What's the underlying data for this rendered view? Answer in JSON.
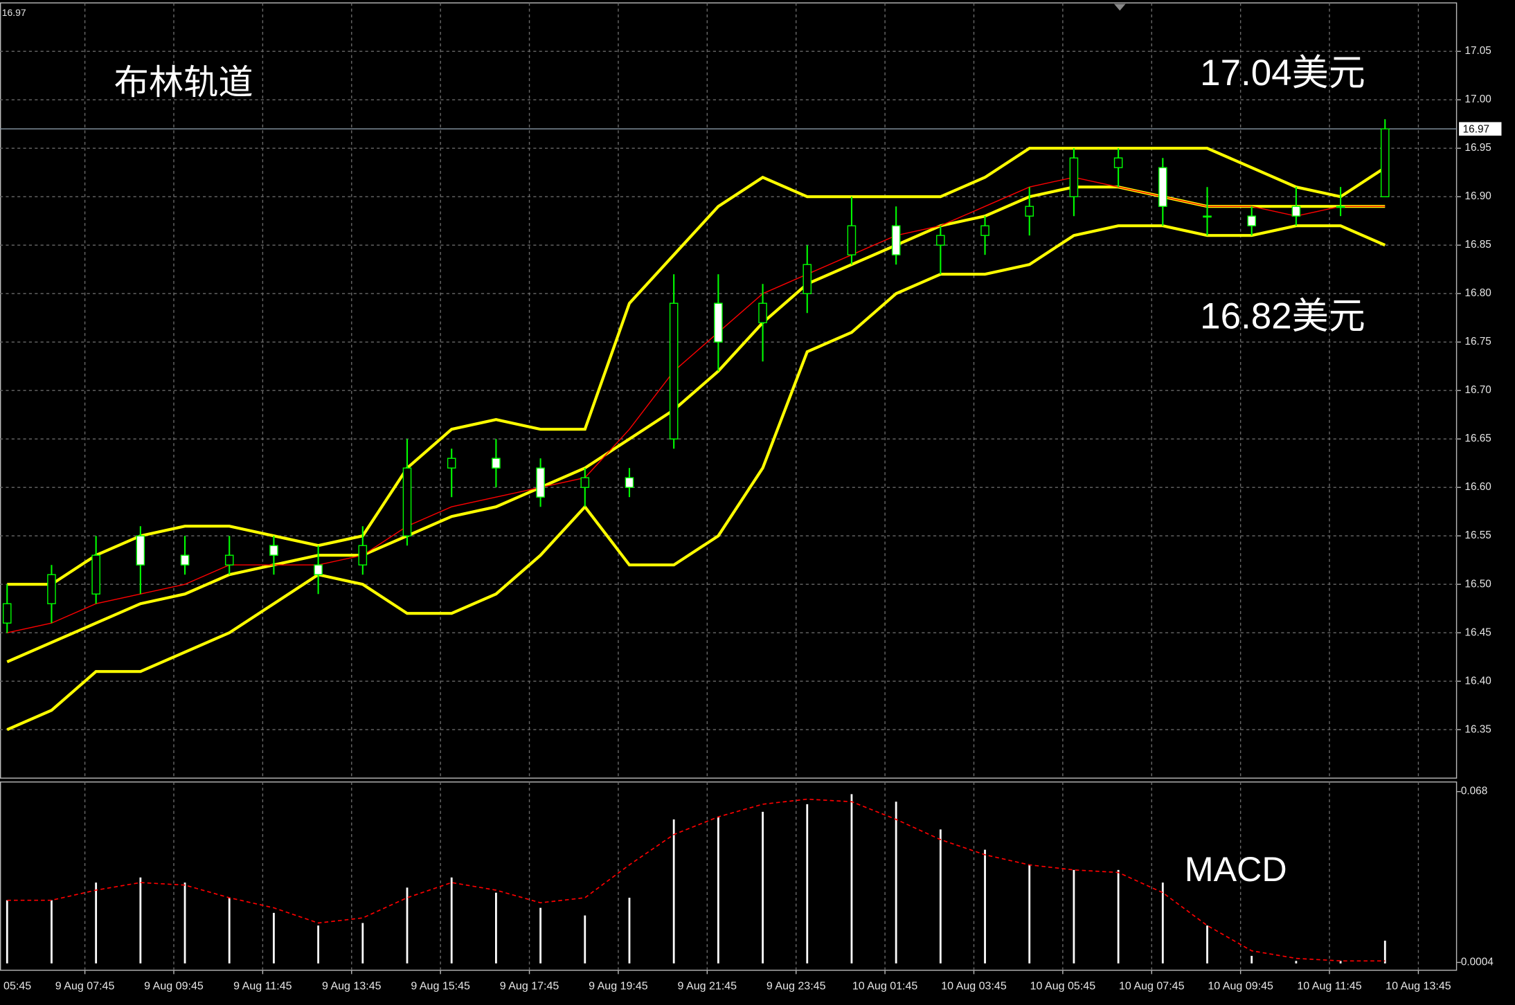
{
  "chart_data": [
    {
      "type": "candlestick",
      "title": "布林轨道",
      "current_price": 16.97,
      "annotations": [
        "17.04美元",
        "16.82美元"
      ],
      "x": [
        6,
        7,
        8,
        9,
        10,
        11,
        12,
        13,
        14,
        15,
        16,
        17,
        18,
        19,
        20,
        21,
        22,
        23,
        24,
        25,
        26,
        27,
        28,
        29,
        30,
        31,
        32,
        33,
        34,
        35,
        36,
        37
      ],
      "open": [
        16.46,
        16.48,
        16.49,
        16.55,
        16.53,
        16.52,
        16.54,
        16.52,
        16.52,
        16.55,
        16.62,
        16.63,
        16.62,
        16.6,
        16.61,
        16.65,
        16.79,
        16.77,
        16.8,
        16.84,
        16.87,
        16.85,
        16.86,
        16.88,
        16.9,
        16.93,
        16.93,
        16.88,
        16.88,
        16.89,
        16.89,
        16.9
      ],
      "high": [
        16.5,
        16.52,
        16.55,
        16.56,
        16.55,
        16.55,
        16.55,
        16.54,
        16.56,
        16.65,
        16.64,
        16.65,
        16.63,
        16.62,
        16.62,
        16.82,
        16.82,
        16.81,
        16.85,
        16.9,
        16.89,
        16.87,
        16.88,
        16.91,
        16.95,
        16.95,
        16.94,
        16.91,
        16.89,
        16.91,
        16.91,
        16.98
      ],
      "low": [
        16.45,
        16.46,
        16.48,
        16.49,
        16.51,
        16.51,
        16.51,
        16.49,
        16.51,
        16.54,
        16.59,
        16.6,
        16.58,
        16.58,
        16.59,
        16.64,
        16.72,
        16.73,
        16.78,
        16.83,
        16.83,
        16.82,
        16.84,
        16.86,
        16.88,
        16.91,
        16.87,
        16.86,
        16.86,
        16.87,
        16.88,
        16.9
      ],
      "close": [
        16.48,
        16.51,
        16.53,
        16.52,
        16.52,
        16.53,
        16.53,
        16.51,
        16.54,
        16.62,
        16.63,
        16.62,
        16.59,
        16.61,
        16.6,
        16.79,
        16.75,
        16.79,
        16.83,
        16.87,
        16.84,
        16.86,
        16.87,
        16.89,
        16.94,
        16.94,
        16.89,
        16.88,
        16.87,
        16.88,
        16.89,
        16.97
      ],
      "up_color": "#000000",
      "down_color": "#ffffff",
      "candle_stroke": "#00ff00",
      "series": [
        {
          "color": "#ffff00",
          "values": [
            16.5,
            16.5,
            16.53,
            16.55,
            16.56,
            16.56,
            16.55,
            16.54,
            16.55,
            16.62,
            16.66,
            16.67,
            16.66,
            16.66,
            16.79,
            16.84,
            16.89,
            16.92,
            16.9,
            16.9,
            16.9,
            16.9,
            16.92,
            16.95,
            16.95,
            16.95,
            16.95,
            16.95,
            16.93,
            16.91,
            16.9,
            16.93
          ]
        },
        {
          "color": "#ffff00",
          "values": [
            16.42,
            16.44,
            16.46,
            16.48,
            16.49,
            16.51,
            16.52,
            16.53,
            16.53,
            16.55,
            16.57,
            16.58,
            16.6,
            16.62,
            16.65,
            16.68,
            16.72,
            16.77,
            16.81,
            16.83,
            16.85,
            16.87,
            16.88,
            16.9,
            16.91,
            16.91,
            16.9,
            16.89,
            16.89,
            16.89,
            16.89,
            16.89
          ]
        },
        {
          "color": "#ffff00",
          "values": [
            16.35,
            16.37,
            16.41,
            16.41,
            16.43,
            16.45,
            16.48,
            16.51,
            16.5,
            16.47,
            16.47,
            16.49,
            16.53,
            16.58,
            16.52,
            16.52,
            16.55,
            16.62,
            16.74,
            16.76,
            16.8,
            16.82,
            16.82,
            16.83,
            16.86,
            16.87,
            16.87,
            16.86,
            16.86,
            16.87,
            16.87,
            16.85
          ]
        },
        {
          "color": "#ff0000",
          "values": [
            16.45,
            16.46,
            16.48,
            16.49,
            16.5,
            16.52,
            16.52,
            16.52,
            16.53,
            16.56,
            16.58,
            16.59,
            16.6,
            16.61,
            16.66,
            16.72,
            16.76,
            16.8,
            16.82,
            16.84,
            16.86,
            16.87,
            16.89,
            16.91,
            16.92,
            16.91,
            16.9,
            16.89,
            16.89,
            16.88,
            16.89,
            16.89
          ]
        }
      ],
      "xlim": [
        5.84,
        38.62
      ],
      "xticks": [
        {
          "value": 5.75,
          "label": "05:45"
        },
        {
          "value": 7.75,
          "label": "9 Aug 07:45"
        },
        {
          "value": 9.75,
          "label": "9 Aug 09:45"
        },
        {
          "value": 11.75,
          "label": "9 Aug 11:45"
        },
        {
          "value": 13.75,
          "label": "9 Aug 13:45"
        },
        {
          "value": 15.75,
          "label": "9 Aug 15:45"
        },
        {
          "value": 17.75,
          "label": "9 Aug 17:45"
        },
        {
          "value": 19.75,
          "label": "9 Aug 19:45"
        },
        {
          "value": 21.75,
          "label": "9 Aug 21:45"
        },
        {
          "value": 23.75,
          "label": "9 Aug 23:45"
        },
        {
          "value": 25.75,
          "label": "10 Aug 01:45"
        },
        {
          "value": 27.75,
          "label": "10 Aug 03:45"
        },
        {
          "value": 29.75,
          "label": "10 Aug 05:45"
        },
        {
          "value": 31.75,
          "label": "10 Aug 07:45"
        },
        {
          "value": 33.75,
          "label": "10 Aug 09:45"
        },
        {
          "value": 35.75,
          "label": "10 Aug 11:45"
        },
        {
          "value": 37.75,
          "label": "10 Aug 13:45"
        }
      ],
      "ylim": [
        16.3,
        17.1
      ],
      "yticks": [
        17.05,
        {
          "value": 17.0,
          "label": "17.00"
        },
        16.95,
        {
          "value": 16.9,
          "label": "16.90"
        },
        16.85,
        {
          "value": 16.8,
          "label": "16.80"
        },
        16.75,
        {
          "value": 16.7,
          "label": "16.70"
        },
        16.65,
        {
          "value": 16.6,
          "label": "16.60"
        },
        16.55,
        {
          "value": 16.5,
          "label": "16.50"
        },
        16.45,
        {
          "value": 16.4,
          "label": "16.40"
        },
        16.35
      ],
      "grid": true
    },
    {
      "type": "bar",
      "title": "MACD",
      "color": "#ffffff",
      "values": [
        0.025,
        0.025,
        0.032,
        0.034,
        0.032,
        0.026,
        0.02,
        0.015,
        0.016,
        0.03,
        0.034,
        0.028,
        0.022,
        0.019,
        0.026,
        0.057,
        0.058,
        0.06,
        0.063,
        0.067,
        0.064,
        0.053,
        0.045,
        0.039,
        0.037,
        0.037,
        0.032,
        0.015,
        0.003,
        0.001,
        0.001,
        0.009
      ],
      "series": [
        {
          "color": "#ff0000",
          "values": [
            0.025,
            0.025,
            0.029,
            0.032,
            0.031,
            0.026,
            0.022,
            0.016,
            0.018,
            0.026,
            0.032,
            0.029,
            0.024,
            0.026,
            0.039,
            0.051,
            0.058,
            0.063,
            0.065,
            0.064,
            0.057,
            0.049,
            0.043,
            0.039,
            0.037,
            0.036,
            0.028,
            0.015,
            0.005,
            0.002,
            0.001,
            0.001
          ]
        }
      ],
      "ylim": [
        -0.0027,
        0.0718
      ],
      "yticks": [
        0.068,
        0.0004
      ]
    }
  ]
}
